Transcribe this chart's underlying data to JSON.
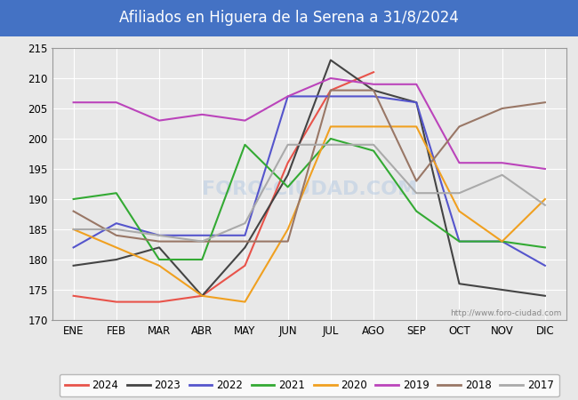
{
  "title": "Afiliados en Higuera de la Serena a 31/8/2024",
  "title_bg_color": "#4472c4",
  "title_text_color": "white",
  "ylim": [
    170,
    215
  ],
  "yticks": [
    170,
    175,
    180,
    185,
    190,
    195,
    200,
    205,
    210,
    215
  ],
  "months": [
    "ENE",
    "FEB",
    "MAR",
    "ABR",
    "MAY",
    "JUN",
    "JUL",
    "AGO",
    "SEP",
    "OCT",
    "NOV",
    "DIC"
  ],
  "series": {
    "2024": {
      "color": "#e8534a",
      "data": [
        174,
        173,
        173,
        174,
        179,
        196,
        208,
        211,
        null,
        null,
        null,
        null
      ]
    },
    "2023": {
      "color": "#444444",
      "data": [
        179,
        180,
        182,
        174,
        182,
        194,
        213,
        208,
        206,
        176,
        175,
        174
      ]
    },
    "2022": {
      "color": "#5555cc",
      "data": [
        182,
        186,
        184,
        184,
        184,
        207,
        207,
        207,
        206,
        183,
        183,
        179
      ]
    },
    "2021": {
      "color": "#33aa33",
      "data": [
        190,
        191,
        180,
        180,
        199,
        192,
        200,
        198,
        188,
        183,
        183,
        182
      ]
    },
    "2020": {
      "color": "#f0a020",
      "data": [
        185,
        182,
        179,
        174,
        173,
        185,
        202,
        202,
        202,
        188,
        183,
        190
      ]
    },
    "2019": {
      "color": "#bb44bb",
      "data": [
        206,
        206,
        203,
        204,
        203,
        207,
        210,
        209,
        209,
        196,
        196,
        195
      ]
    },
    "2018": {
      "color": "#997766",
      "data": [
        188,
        184,
        183,
        183,
        183,
        183,
        208,
        208,
        193,
        202,
        205,
        206
      ]
    },
    "2017": {
      "color": "#aaaaaa",
      "data": [
        185,
        185,
        184,
        183,
        186,
        199,
        199,
        199,
        191,
        191,
        194,
        189
      ]
    }
  },
  "legend_order": [
    "2024",
    "2023",
    "2022",
    "2021",
    "2020",
    "2019",
    "2018",
    "2017"
  ],
  "plot_bg_color": "#e8e8e8",
  "fig_bg_color": "#e8e8e8",
  "grid_color": "white",
  "url_text": "http://www.foro-ciudad.com",
  "watermark_text": "FORO-CIUDAD.COM"
}
